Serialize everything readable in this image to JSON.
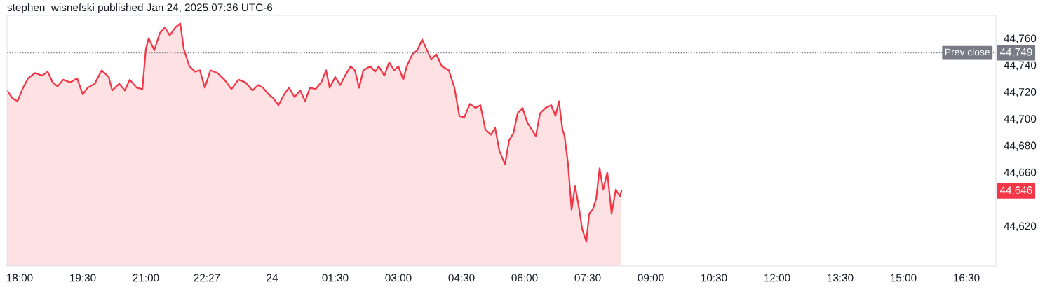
{
  "chart_data": {
    "type": "area",
    "title": "stephen_wisnefski published Jan 24, 2025 07:36 UTC-6",
    "x": [
      "2025-01-23T17:42",
      "2025-01-23T17:50",
      "2025-01-23T17:57",
      "2025-01-23T18:04",
      "2025-01-23T18:12",
      "2025-01-23T18:22",
      "2025-01-23T18:32",
      "2025-01-23T18:40",
      "2025-01-23T18:47",
      "2025-01-23T18:54",
      "2025-01-23T19:02",
      "2025-01-23T19:12",
      "2025-01-23T19:22",
      "2025-01-23T19:30",
      "2025-01-23T19:37",
      "2025-01-23T19:47",
      "2025-01-23T19:57",
      "2025-01-23T20:07",
      "2025-01-23T20:12",
      "2025-01-23T20:22",
      "2025-01-23T20:30",
      "2025-01-23T20:37",
      "2025-01-23T20:47",
      "2025-01-23T20:55",
      "2025-01-23T21:00",
      "2025-01-23T21:04",
      "2025-01-23T21:12",
      "2025-01-23T21:20",
      "2025-01-23T21:27",
      "2025-01-23T21:34",
      "2025-01-23T21:42",
      "2025-01-23T21:49",
      "2025-01-23T21:54",
      "2025-01-23T22:02",
      "2025-01-23T22:10",
      "2025-01-23T22:17",
      "2025-01-23T22:24",
      "2025-01-23T22:32",
      "2025-01-23T22:42",
      "2025-01-23T22:52",
      "2025-01-23T23:02",
      "2025-01-23T23:12",
      "2025-01-23T23:22",
      "2025-01-23T23:32",
      "2025-01-23T23:40",
      "2025-01-23T23:47",
      "2025-01-23T23:55",
      "2025-01-24T00:02",
      "2025-01-24T00:09",
      "2025-01-24T00:17",
      "2025-01-24T00:24",
      "2025-01-24T00:32",
      "2025-01-24T00:40",
      "2025-01-24T00:47",
      "2025-01-24T00:54",
      "2025-01-24T01:02",
      "2025-01-24T01:10",
      "2025-01-24T01:17",
      "2025-01-24T01:22",
      "2025-01-24T01:30",
      "2025-01-24T01:37",
      "2025-01-24T01:44",
      "2025-01-24T01:52",
      "2025-01-24T01:58",
      "2025-01-24T02:04",
      "2025-01-24T02:10",
      "2025-01-24T02:20",
      "2025-01-24T02:27",
      "2025-01-24T02:32",
      "2025-01-24T02:40",
      "2025-01-24T02:47",
      "2025-01-24T02:54",
      "2025-01-24T03:00",
      "2025-01-24T03:07",
      "2025-01-24T03:12",
      "2025-01-24T03:20",
      "2025-01-24T03:27",
      "2025-01-24T03:34",
      "2025-01-24T03:40",
      "2025-01-24T03:47",
      "2025-01-24T03:54",
      "2025-01-24T04:02",
      "2025-01-24T04:12",
      "2025-01-24T04:20",
      "2025-01-24T04:27",
      "2025-01-24T04:34",
      "2025-01-24T04:42",
      "2025-01-24T04:50",
      "2025-01-24T04:57",
      "2025-01-24T05:04",
      "2025-01-24T05:12",
      "2025-01-24T05:18",
      "2025-01-24T05:24",
      "2025-01-24T05:32",
      "2025-01-24T05:38",
      "2025-01-24T05:44",
      "2025-01-24T05:50",
      "2025-01-24T05:57",
      "2025-01-24T06:04",
      "2025-01-24T06:10",
      "2025-01-24T06:16",
      "2025-01-24T06:22",
      "2025-01-24T06:30",
      "2025-01-24T06:38",
      "2025-01-24T06:44",
      "2025-01-24T06:49",
      "2025-01-24T06:54",
      "2025-01-24T06:57",
      "2025-01-24T07:02",
      "2025-01-24T07:07",
      "2025-01-24T07:12",
      "2025-01-24T07:18",
      "2025-01-24T07:22",
      "2025-01-24T07:28",
      "2025-01-24T07:32",
      "2025-01-24T07:37",
      "2025-01-24T07:42",
      "2025-01-24T07:47",
      "2025-01-24T07:52",
      "2025-01-24T07:58",
      "2025-01-24T08:04",
      "2025-01-24T08:10",
      "2025-01-24T08:16",
      "2025-01-24T08:18"
    ],
    "series": [
      {
        "color": "#f23645",
        "values": [
          44721,
          44715,
          44713,
          44722,
          44730,
          44734,
          44732,
          44735,
          44727,
          44724,
          44729,
          44727,
          44730,
          44718,
          44723,
          44726,
          44736,
          44731,
          44721,
          44726,
          44721,
          44729,
          44723,
          44722,
          44752,
          44760,
          44751,
          44764,
          44768,
          44762,
          44768,
          44771,
          44752,
          44739,
          44735,
          44736,
          44723,
          44736,
          44734,
          44729,
          44722,
          44729,
          44727,
          44721,
          44725,
          44723,
          44718,
          44715,
          44710,
          44718,
          44723,
          44716,
          44721,
          44713,
          44723,
          44722,
          44727,
          44736,
          44723,
          44731,
          44725,
          44732,
          44739,
          44736,
          44723,
          44736,
          44739,
          44735,
          44739,
          44732,
          44742,
          44736,
          44739,
          44729,
          44739,
          44748,
          44751,
          44759,
          44752,
          44744,
          44748,
          44739,
          44736,
          44723,
          44702,
          44701,
          44711,
          44708,
          44710,
          44692,
          44688,
          44693,
          44676,
          44666,
          44684,
          44689,
          44704,
          44708,
          44697,
          44692,
          44687,
          44704,
          44708,
          44710,
          44702,
          44713,
          44692,
          44687,
          44666,
          44632,
          44650,
          44632,
          44618,
          44608,
          44629,
          44632,
          44640,
          44663,
          44647,
          44660,
          44629,
          44647,
          44642,
          44646
        ]
      }
    ],
    "xlim": [
      "2025-01-23T17:42",
      "2025-01-24T17:12"
    ],
    "xticks": [
      {
        "value": "2025-01-23T18:00",
        "label": "18:00"
      },
      {
        "value": "2025-01-23T19:30",
        "label": "19:30"
      },
      {
        "value": "2025-01-23T21:00",
        "label": "21:00"
      },
      {
        "value": "2025-01-23T22:27",
        "label": "22:27"
      },
      {
        "value": "2025-01-24T00:00",
        "label": "24"
      },
      {
        "value": "2025-01-24T01:30",
        "label": "01:30"
      },
      {
        "value": "2025-01-24T03:00",
        "label": "03:00"
      },
      {
        "value": "2025-01-24T04:30",
        "label": "04:30"
      },
      {
        "value": "2025-01-24T06:00",
        "label": "06:00"
      },
      {
        "value": "2025-01-24T07:30",
        "label": "07:30"
      },
      {
        "value": "2025-01-24T09:00",
        "label": "09:00"
      },
      {
        "value": "2025-01-24T10:30",
        "label": "10:30"
      },
      {
        "value": "2025-01-24T12:00",
        "label": "12:00"
      },
      {
        "value": "2025-01-24T13:30",
        "label": "13:30"
      },
      {
        "value": "2025-01-24T15:00",
        "label": "15:00"
      },
      {
        "value": "2025-01-24T16:30",
        "label": "16:30"
      }
    ],
    "ylim": [
      44590,
      44777
    ],
    "yticks": [
      {
        "value": 44620,
        "label": "44,620"
      },
      {
        "value": 44660,
        "label": "44,660"
      },
      {
        "value": 44680,
        "label": "44,680"
      },
      {
        "value": 44700,
        "label": "44,700"
      },
      {
        "value": 44720,
        "label": "44,720"
      },
      {
        "value": 44740,
        "label": "44,740"
      },
      {
        "value": 44760,
        "label": "44,760"
      }
    ],
    "ref_lines": [
      {
        "axis": "y",
        "value": 44749,
        "label": "Prev close",
        "color": "#787b86",
        "line_style": "dotted"
      }
    ],
    "annotations": [
      {
        "text": "44,749",
        "x": "2025-01-24T17:12",
        "y": 44749
      },
      "44,646"
    ],
    "grid": false
  }
}
